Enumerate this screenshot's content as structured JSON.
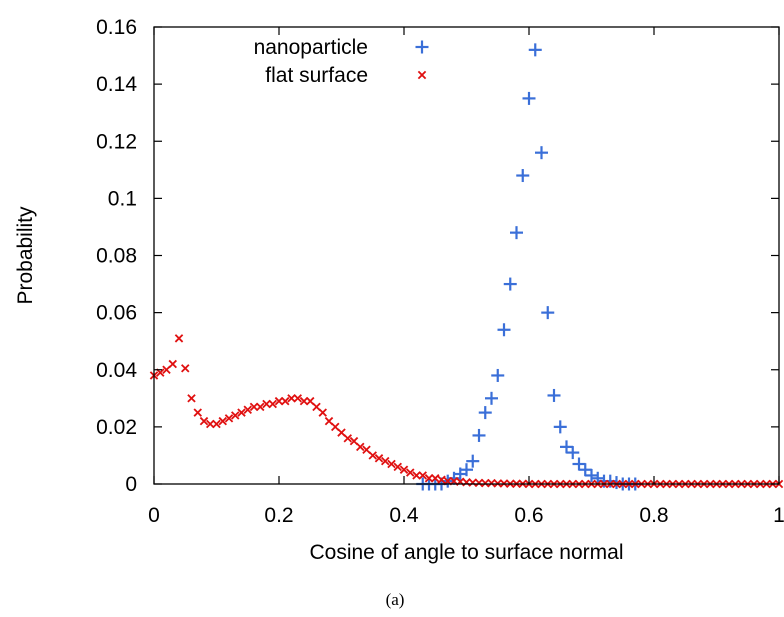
{
  "chart_data": {
    "type": "scatter",
    "xlabel": "Cosine of angle to surface normal",
    "ylabel": "Probability",
    "xlim": [
      0,
      1
    ],
    "ylim": [
      0,
      0.16
    ],
    "xticks": [
      "0",
      "0.2",
      "0.4",
      "0.6",
      "0.8",
      "1"
    ],
    "yticks": [
      "0",
      "0.02",
      "0.04",
      "0.06",
      "0.08",
      "0.1",
      "0.12",
      "0.14",
      "0.16"
    ],
    "legend_position": "top-right",
    "grid": false,
    "caption": "(a)",
    "series": [
      {
        "name": "nanoparticle",
        "marker": "plus",
        "color": "#3a6fd8",
        "points": [
          [
            0.43,
            0
          ],
          [
            0.44,
            0
          ],
          [
            0.45,
            0
          ],
          [
            0.46,
            0
          ],
          [
            0.47,
            0.001
          ],
          [
            0.48,
            0.002
          ],
          [
            0.49,
            0.0035
          ],
          [
            0.5,
            0.005
          ],
          [
            0.51,
            0.008
          ],
          [
            0.52,
            0.017
          ],
          [
            0.53,
            0.025
          ],
          [
            0.54,
            0.03
          ],
          [
            0.55,
            0.038
          ],
          [
            0.56,
            0.054
          ],
          [
            0.57,
            0.07
          ],
          [
            0.58,
            0.088
          ],
          [
            0.59,
            0.108
          ],
          [
            0.6,
            0.135
          ],
          [
            0.61,
            0.152
          ],
          [
            0.62,
            0.116
          ],
          [
            0.63,
            0.06
          ],
          [
            0.64,
            0.031
          ],
          [
            0.65,
            0.02
          ],
          [
            0.66,
            0.013
          ],
          [
            0.67,
            0.011
          ],
          [
            0.68,
            0.007
          ],
          [
            0.69,
            0.005
          ],
          [
            0.7,
            0.003
          ],
          [
            0.71,
            0.002
          ],
          [
            0.72,
            0.001
          ],
          [
            0.73,
            0.001
          ],
          [
            0.74,
            0.0005
          ],
          [
            0.75,
            0
          ],
          [
            0.76,
            0
          ],
          [
            0.77,
            0
          ]
        ]
      },
      {
        "name": "flat surface",
        "marker": "cross",
        "color": "#e01010",
        "points": [
          [
            0.0,
            0.038
          ],
          [
            0.01,
            0.039
          ],
          [
            0.02,
            0.04
          ],
          [
            0.03,
            0.042
          ],
          [
            0.04,
            0.051
          ],
          [
            0.05,
            0.0405
          ],
          [
            0.06,
            0.03
          ],
          [
            0.07,
            0.025
          ],
          [
            0.08,
            0.022
          ],
          [
            0.09,
            0.021
          ],
          [
            0.1,
            0.021
          ],
          [
            0.11,
            0.022
          ],
          [
            0.12,
            0.023
          ],
          [
            0.13,
            0.024
          ],
          [
            0.14,
            0.025
          ],
          [
            0.15,
            0.026
          ],
          [
            0.16,
            0.027
          ],
          [
            0.17,
            0.027
          ],
          [
            0.18,
            0.028
          ],
          [
            0.19,
            0.028
          ],
          [
            0.2,
            0.029
          ],
          [
            0.21,
            0.029
          ],
          [
            0.22,
            0.03
          ],
          [
            0.23,
            0.03
          ],
          [
            0.24,
            0.029
          ],
          [
            0.25,
            0.029
          ],
          [
            0.26,
            0.027
          ],
          [
            0.27,
            0.025
          ],
          [
            0.28,
            0.022
          ],
          [
            0.29,
            0.02
          ],
          [
            0.3,
            0.018
          ],
          [
            0.31,
            0.016
          ],
          [
            0.32,
            0.015
          ],
          [
            0.33,
            0.013
          ],
          [
            0.34,
            0.012
          ],
          [
            0.35,
            0.01
          ],
          [
            0.36,
            0.009
          ],
          [
            0.37,
            0.008
          ],
          [
            0.38,
            0.007
          ],
          [
            0.39,
            0.006
          ],
          [
            0.4,
            0.005
          ],
          [
            0.41,
            0.004
          ],
          [
            0.42,
            0.003
          ],
          [
            0.43,
            0.003
          ],
          [
            0.44,
            0.002
          ],
          [
            0.45,
            0.002
          ],
          [
            0.46,
            0.0015
          ],
          [
            0.47,
            0.001
          ],
          [
            0.48,
            0.001
          ],
          [
            0.49,
            0.0008
          ],
          [
            0.5,
            0.0006
          ],
          [
            0.51,
            0.0005
          ],
          [
            0.52,
            0.0004
          ],
          [
            0.53,
            0.0003
          ],
          [
            0.54,
            0.0003
          ],
          [
            0.55,
            0.0002
          ],
          [
            0.56,
            0.0002
          ],
          [
            0.57,
            0.0001
          ],
          [
            0.58,
            0.0001
          ],
          [
            0.59,
            0.0001
          ],
          [
            0.6,
            0
          ],
          [
            0.61,
            0
          ],
          [
            0.62,
            0
          ],
          [
            0.63,
            0
          ],
          [
            0.64,
            0
          ],
          [
            0.65,
            0
          ],
          [
            0.66,
            0
          ],
          [
            0.67,
            0
          ],
          [
            0.68,
            0
          ],
          [
            0.69,
            0
          ],
          [
            0.7,
            0
          ],
          [
            0.71,
            0
          ],
          [
            0.72,
            0
          ],
          [
            0.73,
            0
          ],
          [
            0.74,
            0
          ],
          [
            0.75,
            0
          ],
          [
            0.76,
            0
          ],
          [
            0.77,
            0
          ],
          [
            0.78,
            0
          ],
          [
            0.79,
            0
          ],
          [
            0.8,
            0
          ],
          [
            0.81,
            0
          ],
          [
            0.82,
            0
          ],
          [
            0.83,
            0
          ],
          [
            0.84,
            0
          ],
          [
            0.85,
            0
          ],
          [
            0.86,
            0
          ],
          [
            0.87,
            0
          ],
          [
            0.88,
            0
          ],
          [
            0.89,
            0
          ],
          [
            0.9,
            0
          ],
          [
            0.91,
            0
          ],
          [
            0.92,
            0
          ],
          [
            0.93,
            0
          ],
          [
            0.94,
            0
          ],
          [
            0.95,
            0
          ],
          [
            0.96,
            0
          ],
          [
            0.97,
            0
          ],
          [
            0.98,
            0
          ],
          [
            0.99,
            0
          ],
          [
            1.0,
            0
          ]
        ]
      }
    ]
  }
}
